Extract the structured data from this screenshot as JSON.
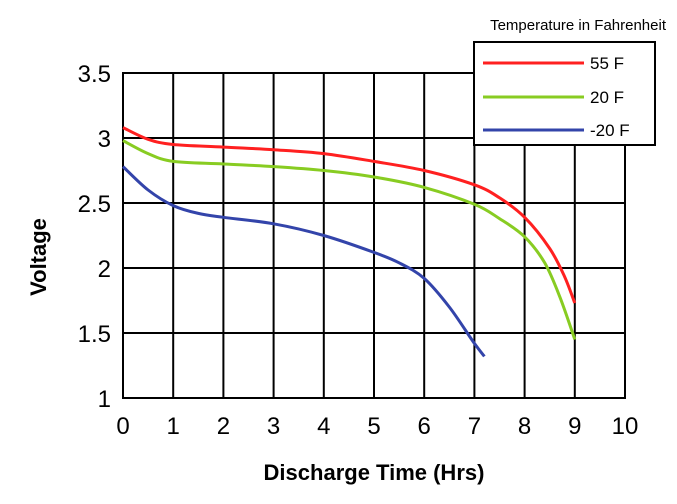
{
  "chart_data": {
    "type": "line",
    "title": "",
    "xlabel": "Discharge Time (Hrs)",
    "ylabel": "Voltage",
    "xlim": [
      0,
      10
    ],
    "ylim": [
      1,
      3.5
    ],
    "grid": true,
    "x_ticks": [
      "0",
      "1",
      "2",
      "3",
      "4",
      "5",
      "6",
      "7",
      "8",
      "9",
      "10"
    ],
    "y_ticks": [
      "1",
      "1.5",
      "2",
      "2.5",
      "3",
      "3.5"
    ],
    "legend": {
      "title": "Temperature in Fahrenheit",
      "placement": "top-right"
    },
    "series": [
      {
        "name": "55 F",
        "color": "#ff2020",
        "points": [
          [
            0,
            3.08
          ],
          [
            0.5,
            2.99
          ],
          [
            1,
            2.95
          ],
          [
            2,
            2.93
          ],
          [
            3,
            2.91
          ],
          [
            4,
            2.88
          ],
          [
            5,
            2.82
          ],
          [
            6,
            2.75
          ],
          [
            7,
            2.64
          ],
          [
            7.5,
            2.54
          ],
          [
            8,
            2.39
          ],
          [
            8.5,
            2.15
          ],
          [
            8.8,
            1.93
          ],
          [
            9,
            1.73
          ]
        ]
      },
      {
        "name": "20 F",
        "color": "#88cc22",
        "points": [
          [
            0,
            2.98
          ],
          [
            0.5,
            2.88
          ],
          [
            1,
            2.82
          ],
          [
            2,
            2.8
          ],
          [
            3,
            2.78
          ],
          [
            4,
            2.75
          ],
          [
            5,
            2.7
          ],
          [
            6,
            2.62
          ],
          [
            7,
            2.49
          ],
          [
            7.5,
            2.38
          ],
          [
            8,
            2.24
          ],
          [
            8.4,
            2.04
          ],
          [
            8.7,
            1.78
          ],
          [
            9,
            1.45
          ]
        ]
      },
      {
        "name": "-20 F",
        "color": "#3344aa",
        "points": [
          [
            0,
            2.78
          ],
          [
            0.5,
            2.6
          ],
          [
            1,
            2.48
          ],
          [
            1.5,
            2.42
          ],
          [
            2,
            2.39
          ],
          [
            3,
            2.34
          ],
          [
            4,
            2.25
          ],
          [
            5,
            2.12
          ],
          [
            5.5,
            2.04
          ],
          [
            6,
            1.92
          ],
          [
            6.5,
            1.7
          ],
          [
            7,
            1.42
          ],
          [
            7.2,
            1.32
          ]
        ]
      }
    ]
  }
}
